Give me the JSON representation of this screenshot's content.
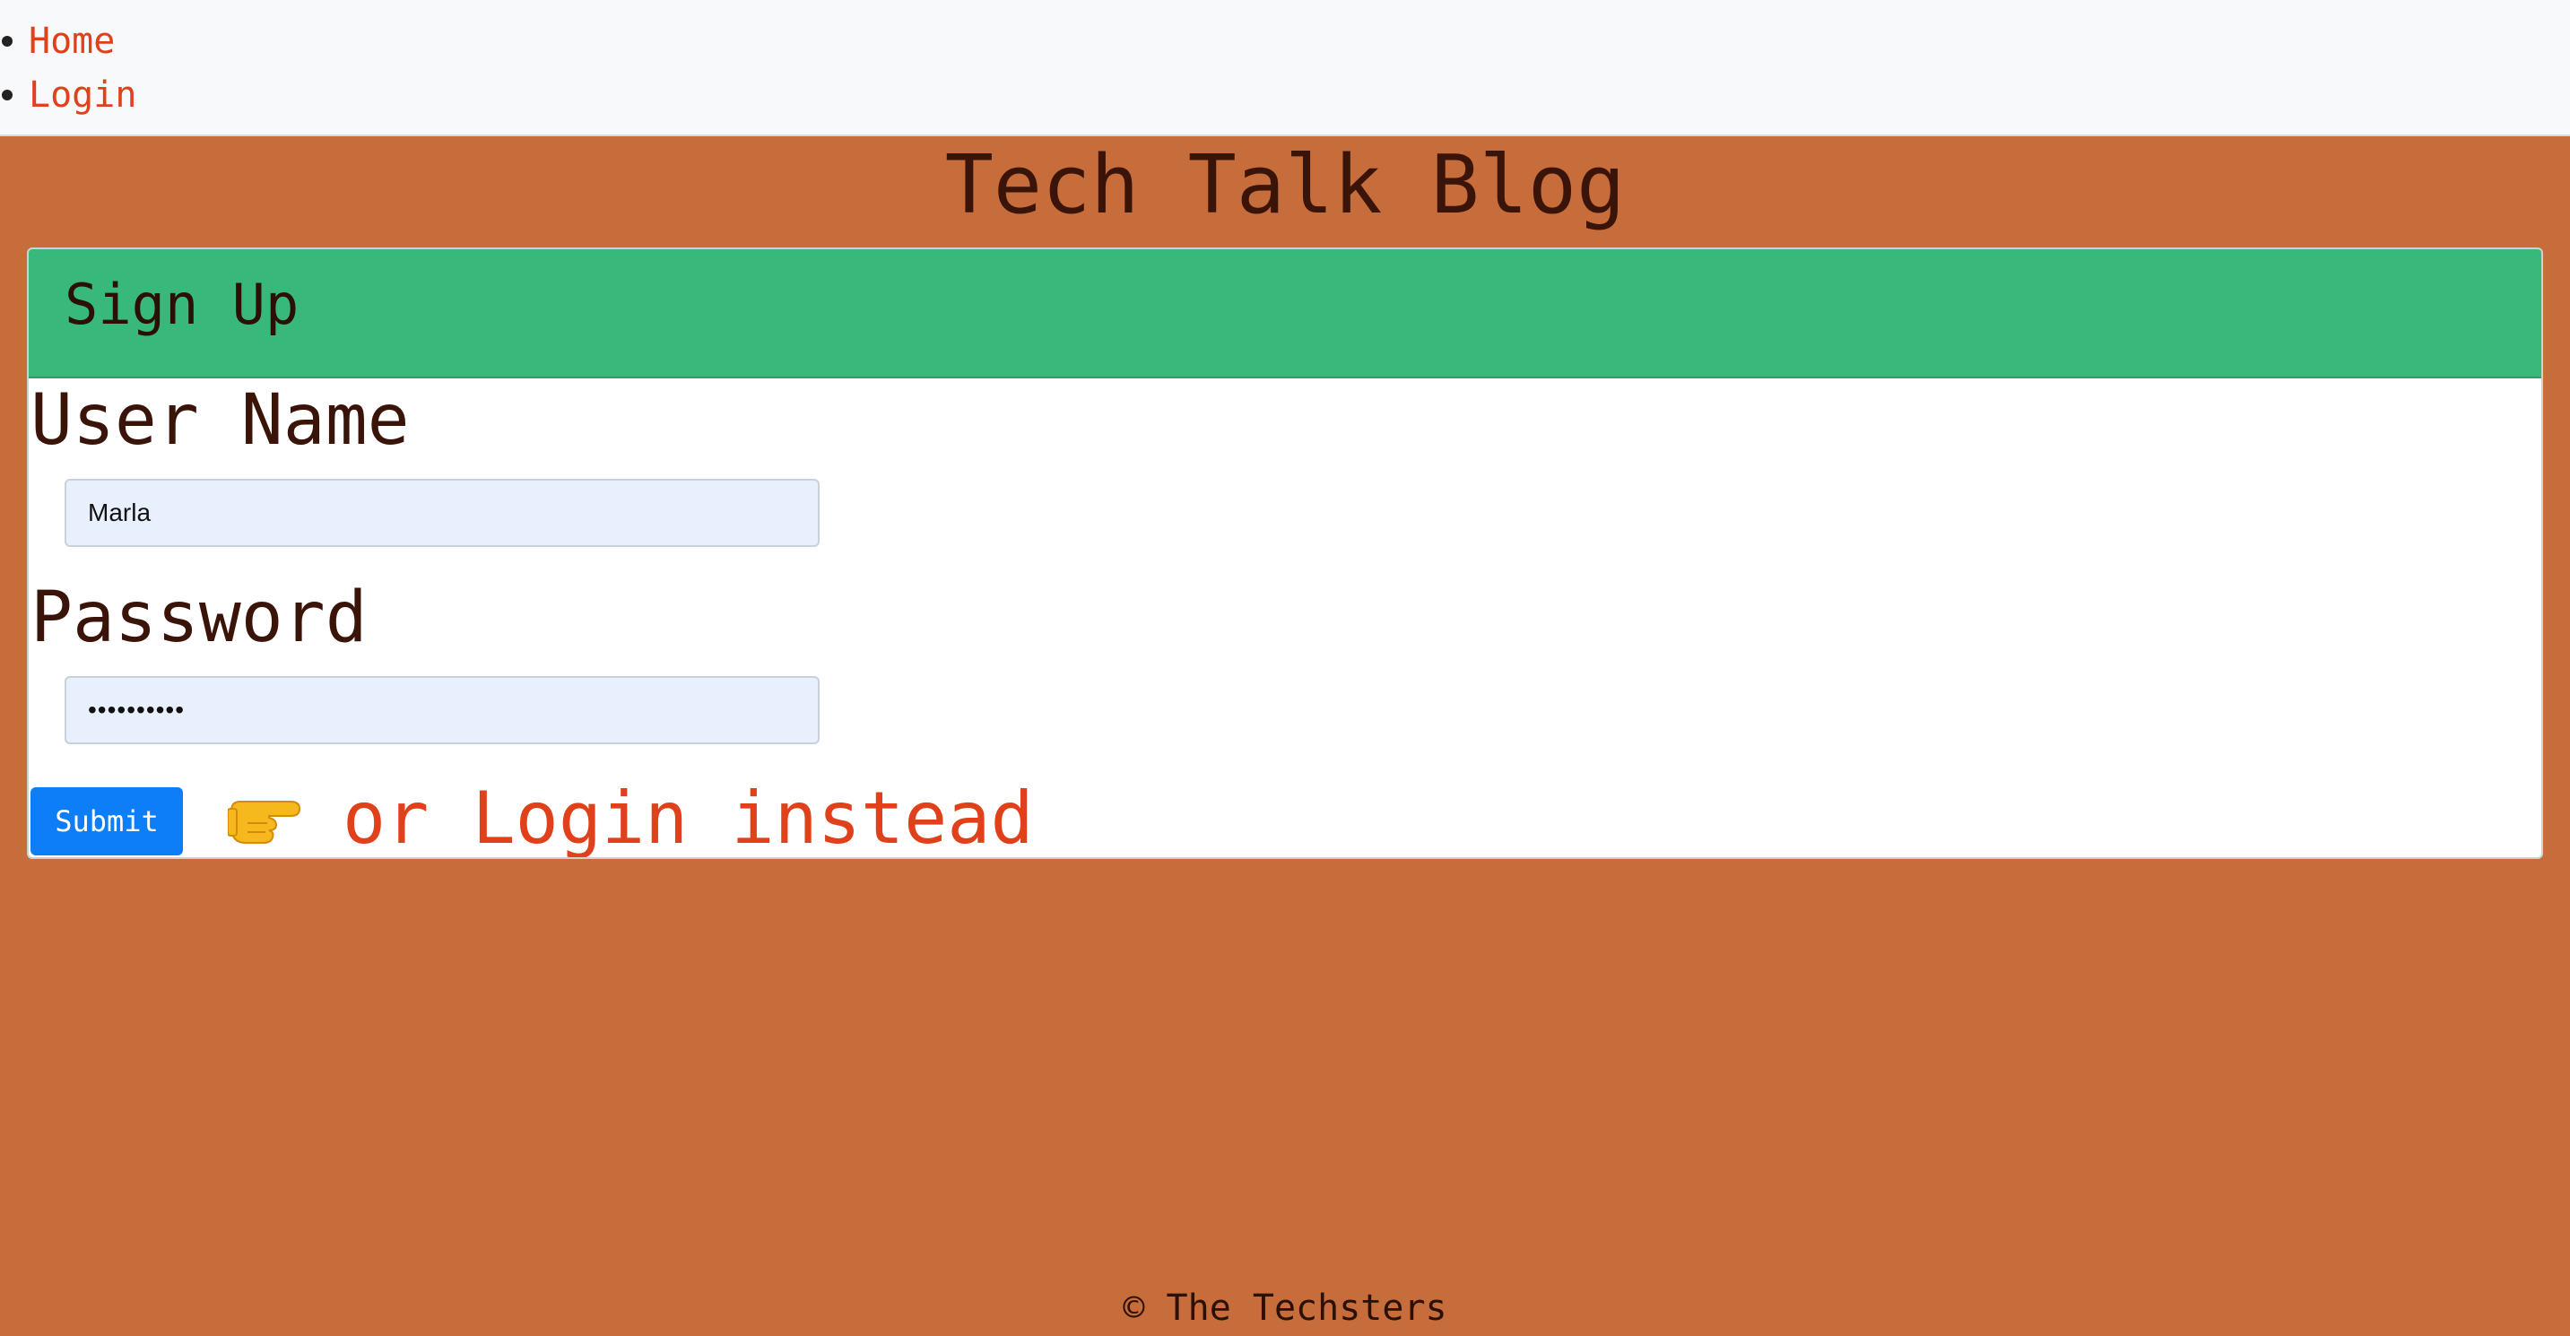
{
  "nav": {
    "items": [
      {
        "label": "Home"
      },
      {
        "label": "Login"
      }
    ]
  },
  "site": {
    "title": "Tech Talk Blog"
  },
  "signup": {
    "heading": "Sign Up",
    "username_label": "User Name",
    "username_value": "Marla",
    "password_label": "Password",
    "password_value": "••••••••••",
    "submit_label": "Submit",
    "pointer_icon": "pointing-right-hand-icon",
    "alt_login_text": "or Login instead"
  },
  "footer": {
    "text": "© The Techsters"
  },
  "colors": {
    "background": "#c76c3b",
    "nav_background": "#f8f9fa",
    "link": "#e0401a",
    "card_header": "#38b87a",
    "submit_button": "#0d7ef7",
    "input_background": "#e8f0fe",
    "text": "#3a1408"
  }
}
